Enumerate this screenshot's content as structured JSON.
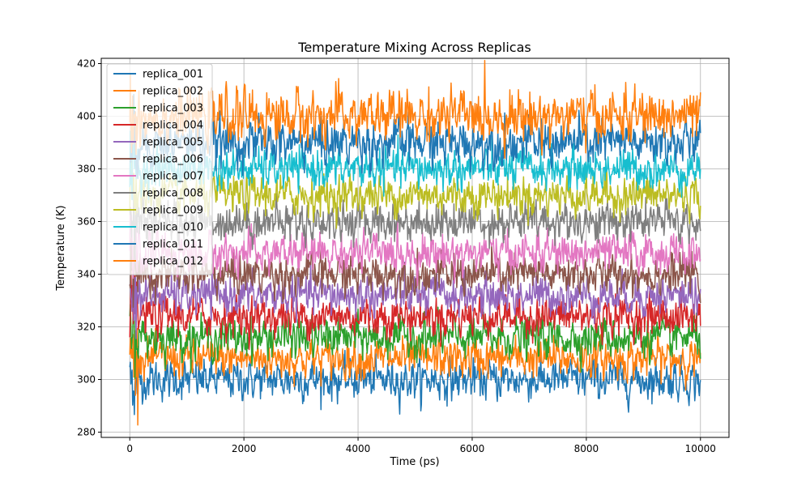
{
  "chart_data": {
    "type": "line",
    "title": "Temperature Mixing Across Replicas",
    "xlabel": "Time (ps)",
    "ylabel": "Temperature (K)",
    "xlim": [
      -500,
      10500
    ],
    "ylim": [
      278,
      422
    ],
    "x_range": [
      0,
      10000
    ],
    "x_ticks": [
      0,
      2000,
      4000,
      6000,
      8000,
      10000
    ],
    "y_ticks": [
      280,
      300,
      320,
      340,
      360,
      380,
      400,
      420
    ],
    "grid": true,
    "legend_position": "upper left",
    "series": [
      {
        "name": "replica_001",
        "mean": 300,
        "noise": 3.5,
        "color": "#1f77b4"
      },
      {
        "name": "replica_002",
        "mean": 308,
        "noise": 3.5,
        "color": "#ff7f0e"
      },
      {
        "name": "replica_003",
        "mean": 316,
        "noise": 3.5,
        "color": "#2ca02c"
      },
      {
        "name": "replica_004",
        "mean": 324,
        "noise": 3.5,
        "color": "#d62728"
      },
      {
        "name": "replica_005",
        "mean": 332,
        "noise": 3.5,
        "color": "#9467bd"
      },
      {
        "name": "replica_006",
        "mean": 340,
        "noise": 3.5,
        "color": "#8c564b"
      },
      {
        "name": "replica_007",
        "mean": 348,
        "noise": 3.5,
        "color": "#e377c2"
      },
      {
        "name": "replica_008",
        "mean": 360,
        "noise": 3.5,
        "color": "#7f7f7f"
      },
      {
        "name": "replica_009",
        "mean": 370,
        "noise": 3.5,
        "color": "#bcbd22"
      },
      {
        "name": "replica_010",
        "mean": 380,
        "noise": 3.5,
        "color": "#17becf"
      },
      {
        "name": "replica_011",
        "mean": 390,
        "noise": 4,
        "color": "#1f77b4"
      },
      {
        "name": "replica_012",
        "mean": 400,
        "noise": 4.5,
        "color": "#ff7f0e"
      }
    ]
  }
}
